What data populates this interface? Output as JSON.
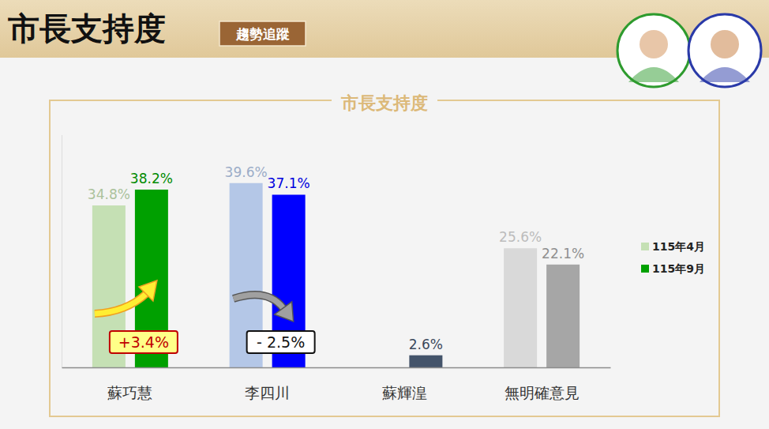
{
  "header": {
    "title": "市長支持度",
    "badge": "趨勢追蹤"
  },
  "chart_data": {
    "type": "bar",
    "title": "市長支持度",
    "categories": [
      "蘇巧慧",
      "李四川",
      "蘇輝湟",
      "無明確意見"
    ],
    "series": [
      {
        "name": "115年4月",
        "color": "#c5e0b4",
        "colors": [
          "#c5e0b4",
          "#b4c7e7",
          "#44546a",
          "#d9d9d9"
        ],
        "values": [
          34.8,
          39.6,
          null,
          25.6
        ],
        "value_labels": [
          "34.8%",
          "39.6%",
          null,
          "25.6%"
        ]
      },
      {
        "name": "115年9月",
        "color": "#00a000",
        "colors": [
          "#00a000",
          "#0000ff",
          "#44546a",
          "#a6a6a6"
        ],
        "values": [
          38.2,
          37.1,
          2.6,
          22.1
        ],
        "value_labels": [
          "38.2%",
          "37.1%",
          "2.6%",
          "22.1%"
        ]
      }
    ],
    "annotations": [
      "+3.4%",
      "- 2.5%"
    ],
    "ylim": [
      0,
      50
    ],
    "tick_labels": "x",
    "data_labels": true,
    "legend": "right",
    "grid": false
  }
}
